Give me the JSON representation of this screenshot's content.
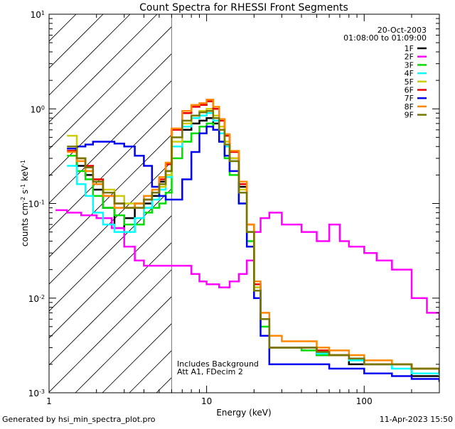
{
  "chart_data": {
    "type": "line",
    "title": "Count Spectra for RHESSI Front Segments",
    "xlabel": "Energy (keV)",
    "ylabel": "counts cm^-2 s^-1 keV^-1",
    "xscale": "log",
    "yscale": "log",
    "xlim": [
      1,
      300
    ],
    "ylim": [
      0.001,
      10
    ],
    "x_ticks": [
      {
        "value": 1,
        "label": "1"
      },
      {
        "value": 10,
        "label": "10"
      },
      {
        "value": 100,
        "label": "100"
      }
    ],
    "y_ticks": [
      {
        "value": 0.001,
        "base": "10",
        "exp": "-3"
      },
      {
        "value": 0.01,
        "base": "10",
        "exp": "-2"
      },
      {
        "value": 0.1,
        "base": "10",
        "exp": "-1"
      },
      {
        "value": 1,
        "base": "10",
        "exp": "0"
      },
      {
        "value": 10,
        "base": "10",
        "exp": "1"
      }
    ],
    "hatched_region": [
      1,
      6
    ],
    "legend": {
      "date": "20-Oct-2003",
      "time_range": "01:08:00 to 01:09:00"
    },
    "annotations": [
      "Includes Background",
      "Att A1, FDecim 2"
    ],
    "series": [
      {
        "name": "1F",
        "color": "#000000",
        "x": [
          1.3,
          1.5,
          1.7,
          1.9,
          2.2,
          2.6,
          3.0,
          3.5,
          4.0,
          4.5,
          5.0,
          5.5,
          6.0,
          7,
          8,
          9,
          10,
          11,
          12,
          13,
          14,
          16,
          18,
          20,
          22,
          25,
          30,
          40,
          50,
          60,
          80,
          100,
          150,
          200,
          300
        ],
        "y": [
          0.38,
          0.25,
          0.2,
          0.14,
          0.09,
          0.055,
          0.07,
          0.1,
          0.1,
          0.12,
          0.17,
          0.22,
          0.4,
          0.6,
          0.7,
          0.75,
          0.8,
          0.7,
          0.55,
          0.4,
          0.3,
          0.15,
          0.05,
          0.012,
          0.006,
          0.003,
          0.003,
          0.003,
          0.0025,
          0.0025,
          0.002,
          0.002,
          0.002,
          0.0015,
          0.0015
        ]
      },
      {
        "name": "2F",
        "color": "#ff00ff",
        "x": [
          1.1,
          1.3,
          1.6,
          2.0,
          2.5,
          3.0,
          3.5,
          4.0,
          5.0,
          6.0,
          7,
          8,
          9,
          10,
          11,
          12,
          14,
          16,
          18,
          20,
          22,
          25,
          30,
          35,
          40,
          50,
          60,
          70,
          80,
          100,
          120,
          150,
          200,
          250,
          300
        ],
        "y": [
          0.085,
          0.08,
          0.075,
          0.07,
          0.055,
          0.035,
          0.025,
          0.022,
          0.022,
          0.022,
          0.022,
          0.018,
          0.015,
          0.014,
          0.014,
          0.013,
          0.015,
          0.018,
          0.025,
          0.05,
          0.07,
          0.08,
          0.06,
          0.06,
          0.05,
          0.04,
          0.06,
          0.04,
          0.035,
          0.03,
          0.025,
          0.02,
          0.01,
          0.007,
          0.006
        ]
      },
      {
        "name": "3F",
        "color": "#00dd00",
        "x": [
          1.3,
          1.5,
          1.7,
          1.9,
          2.2,
          2.6,
          3.0,
          3.5,
          4.0,
          4.5,
          5.0,
          5.5,
          6.0,
          7,
          8,
          9,
          10,
          11,
          12,
          13,
          14,
          16,
          18,
          20,
          22,
          25,
          30,
          40,
          50,
          60,
          80,
          100,
          150,
          200,
          300
        ],
        "y": [
          0.32,
          0.22,
          0.18,
          0.12,
          0.09,
          0.075,
          0.06,
          0.06,
          0.08,
          0.09,
          0.1,
          0.13,
          0.3,
          0.45,
          0.55,
          0.65,
          0.7,
          0.6,
          0.45,
          0.3,
          0.2,
          0.1,
          0.04,
          0.012,
          0.005,
          0.003,
          0.003,
          0.0028,
          0.0025,
          0.0025,
          0.0022,
          0.002,
          0.002,
          0.0018,
          0.0015
        ]
      },
      {
        "name": "4F",
        "color": "#00ffff",
        "x": [
          1.3,
          1.5,
          1.7,
          1.9,
          2.2,
          2.6,
          3.0,
          3.5,
          4.0,
          4.5,
          5.0,
          5.5,
          6.0,
          7,
          8,
          9,
          10,
          11,
          12,
          13,
          14,
          16,
          18,
          20,
          22,
          25,
          30,
          40,
          50,
          60,
          80,
          100,
          150,
          200,
          300
        ],
        "y": [
          0.25,
          0.16,
          0.12,
          0.08,
          0.06,
          0.05,
          0.05,
          0.07,
          0.09,
          0.11,
          0.14,
          0.19,
          0.4,
          0.65,
          0.8,
          0.85,
          0.9,
          0.75,
          0.55,
          0.4,
          0.28,
          0.13,
          0.05,
          0.013,
          0.006,
          0.003,
          0.003,
          0.003,
          0.0026,
          0.0025,
          0.0022,
          0.002,
          0.0018,
          0.0016,
          0.0015
        ]
      },
      {
        "name": "5F",
        "color": "#cccc00",
        "x": [
          1.3,
          1.5,
          1.7,
          1.9,
          2.2,
          2.6,
          3.0,
          3.5,
          4.0,
          4.5,
          5.0,
          5.5,
          6.0,
          7,
          8,
          9,
          10,
          11,
          12,
          13,
          14,
          16,
          18,
          20,
          22,
          25,
          30,
          40,
          50,
          60,
          80,
          100,
          150,
          200,
          300
        ],
        "y": [
          0.52,
          0.3,
          0.22,
          0.18,
          0.14,
          0.12,
          0.1,
          0.1,
          0.12,
          0.13,
          0.15,
          0.2,
          0.45,
          0.7,
          0.85,
          0.95,
          1.0,
          0.85,
          0.65,
          0.45,
          0.3,
          0.14,
          0.05,
          0.013,
          0.006,
          0.003,
          0.003,
          0.003,
          0.0028,
          0.0025,
          0.0023,
          0.002,
          0.002,
          0.0018,
          0.0016
        ]
      },
      {
        "name": "6F",
        "color": "#ee0000",
        "x": [
          1.3,
          1.5,
          1.7,
          1.9,
          2.2,
          2.6,
          3.0,
          3.5,
          4.0,
          4.5,
          5.0,
          5.5,
          6.0,
          7,
          8,
          9,
          10,
          11,
          12,
          13,
          14,
          16,
          18,
          20,
          22,
          25,
          30,
          40,
          50,
          60,
          80,
          100,
          150,
          200,
          300
        ],
        "y": [
          0.36,
          0.3,
          0.25,
          0.18,
          0.12,
          0.1,
          0.09,
          0.09,
          0.11,
          0.13,
          0.18,
          0.26,
          0.6,
          0.9,
          1.05,
          1.1,
          1.2,
          1.0,
          0.75,
          0.52,
          0.35,
          0.16,
          0.06,
          0.014,
          0.006,
          0.003,
          0.003,
          0.003,
          0.0028,
          0.0025,
          0.0023,
          0.002,
          0.002,
          0.0018,
          0.0016
        ]
      },
      {
        "name": "7F",
        "color": "#0000ee",
        "x": [
          1.3,
          1.5,
          1.7,
          1.9,
          2.2,
          2.6,
          3.0,
          3.5,
          4.0,
          4.5,
          5.0,
          5.5,
          6.0,
          7,
          8,
          9,
          10,
          11,
          12,
          13,
          14,
          16,
          18,
          20,
          22,
          25,
          30,
          40,
          50,
          60,
          80,
          100,
          150,
          200,
          300
        ],
        "y": [
          0.38,
          0.4,
          0.42,
          0.45,
          0.45,
          0.43,
          0.4,
          0.32,
          0.25,
          0.15,
          0.12,
          0.11,
          0.11,
          0.18,
          0.35,
          0.55,
          0.65,
          0.6,
          0.45,
          0.32,
          0.22,
          0.1,
          0.035,
          0.01,
          0.004,
          0.002,
          0.002,
          0.002,
          0.002,
          0.0018,
          0.0018,
          0.0016,
          0.0015,
          0.0014,
          0.0013
        ]
      },
      {
        "name": "8F",
        "color": "#ff8800",
        "x": [
          1.3,
          1.5,
          1.7,
          1.9,
          2.2,
          2.6,
          3.0,
          3.5,
          4.0,
          4.5,
          5.0,
          5.5,
          6.0,
          7,
          8,
          9,
          10,
          11,
          12,
          13,
          14,
          16,
          18,
          20,
          22,
          25,
          30,
          40,
          50,
          60,
          80,
          100,
          150,
          200,
          300
        ],
        "y": [
          0.35,
          0.28,
          0.22,
          0.16,
          0.12,
          0.09,
          0.09,
          0.1,
          0.12,
          0.14,
          0.19,
          0.27,
          0.62,
          0.95,
          1.1,
          1.15,
          1.25,
          1.05,
          0.78,
          0.54,
          0.36,
          0.17,
          0.06,
          0.015,
          0.007,
          0.004,
          0.0035,
          0.0035,
          0.003,
          0.0028,
          0.0025,
          0.0022,
          0.002,
          0.0018,
          0.0016
        ]
      },
      {
        "name": "9F",
        "color": "#777700",
        "x": [
          1.3,
          1.5,
          1.7,
          1.9,
          2.2,
          2.6,
          3.0,
          3.5,
          4.0,
          4.5,
          5.0,
          5.5,
          6.0,
          7,
          8,
          9,
          10,
          11,
          12,
          13,
          14,
          16,
          18,
          20,
          22,
          25,
          30,
          40,
          50,
          60,
          80,
          100,
          150,
          200,
          300
        ],
        "y": [
          0.4,
          0.3,
          0.24,
          0.17,
          0.13,
          0.1,
          0.09,
          0.09,
          0.11,
          0.13,
          0.16,
          0.22,
          0.5,
          0.75,
          0.85,
          0.92,
          0.95,
          0.8,
          0.6,
          0.42,
          0.28,
          0.13,
          0.05,
          0.012,
          0.006,
          0.003,
          0.003,
          0.003,
          0.0027,
          0.0025,
          0.0023,
          0.002,
          0.002,
          0.0018,
          0.0016
        ]
      }
    ]
  },
  "footer": {
    "generated_by": "Generated by hsi_min_spectra_plot.pro",
    "timestamp": "11-Apr-2023 15:50"
  }
}
